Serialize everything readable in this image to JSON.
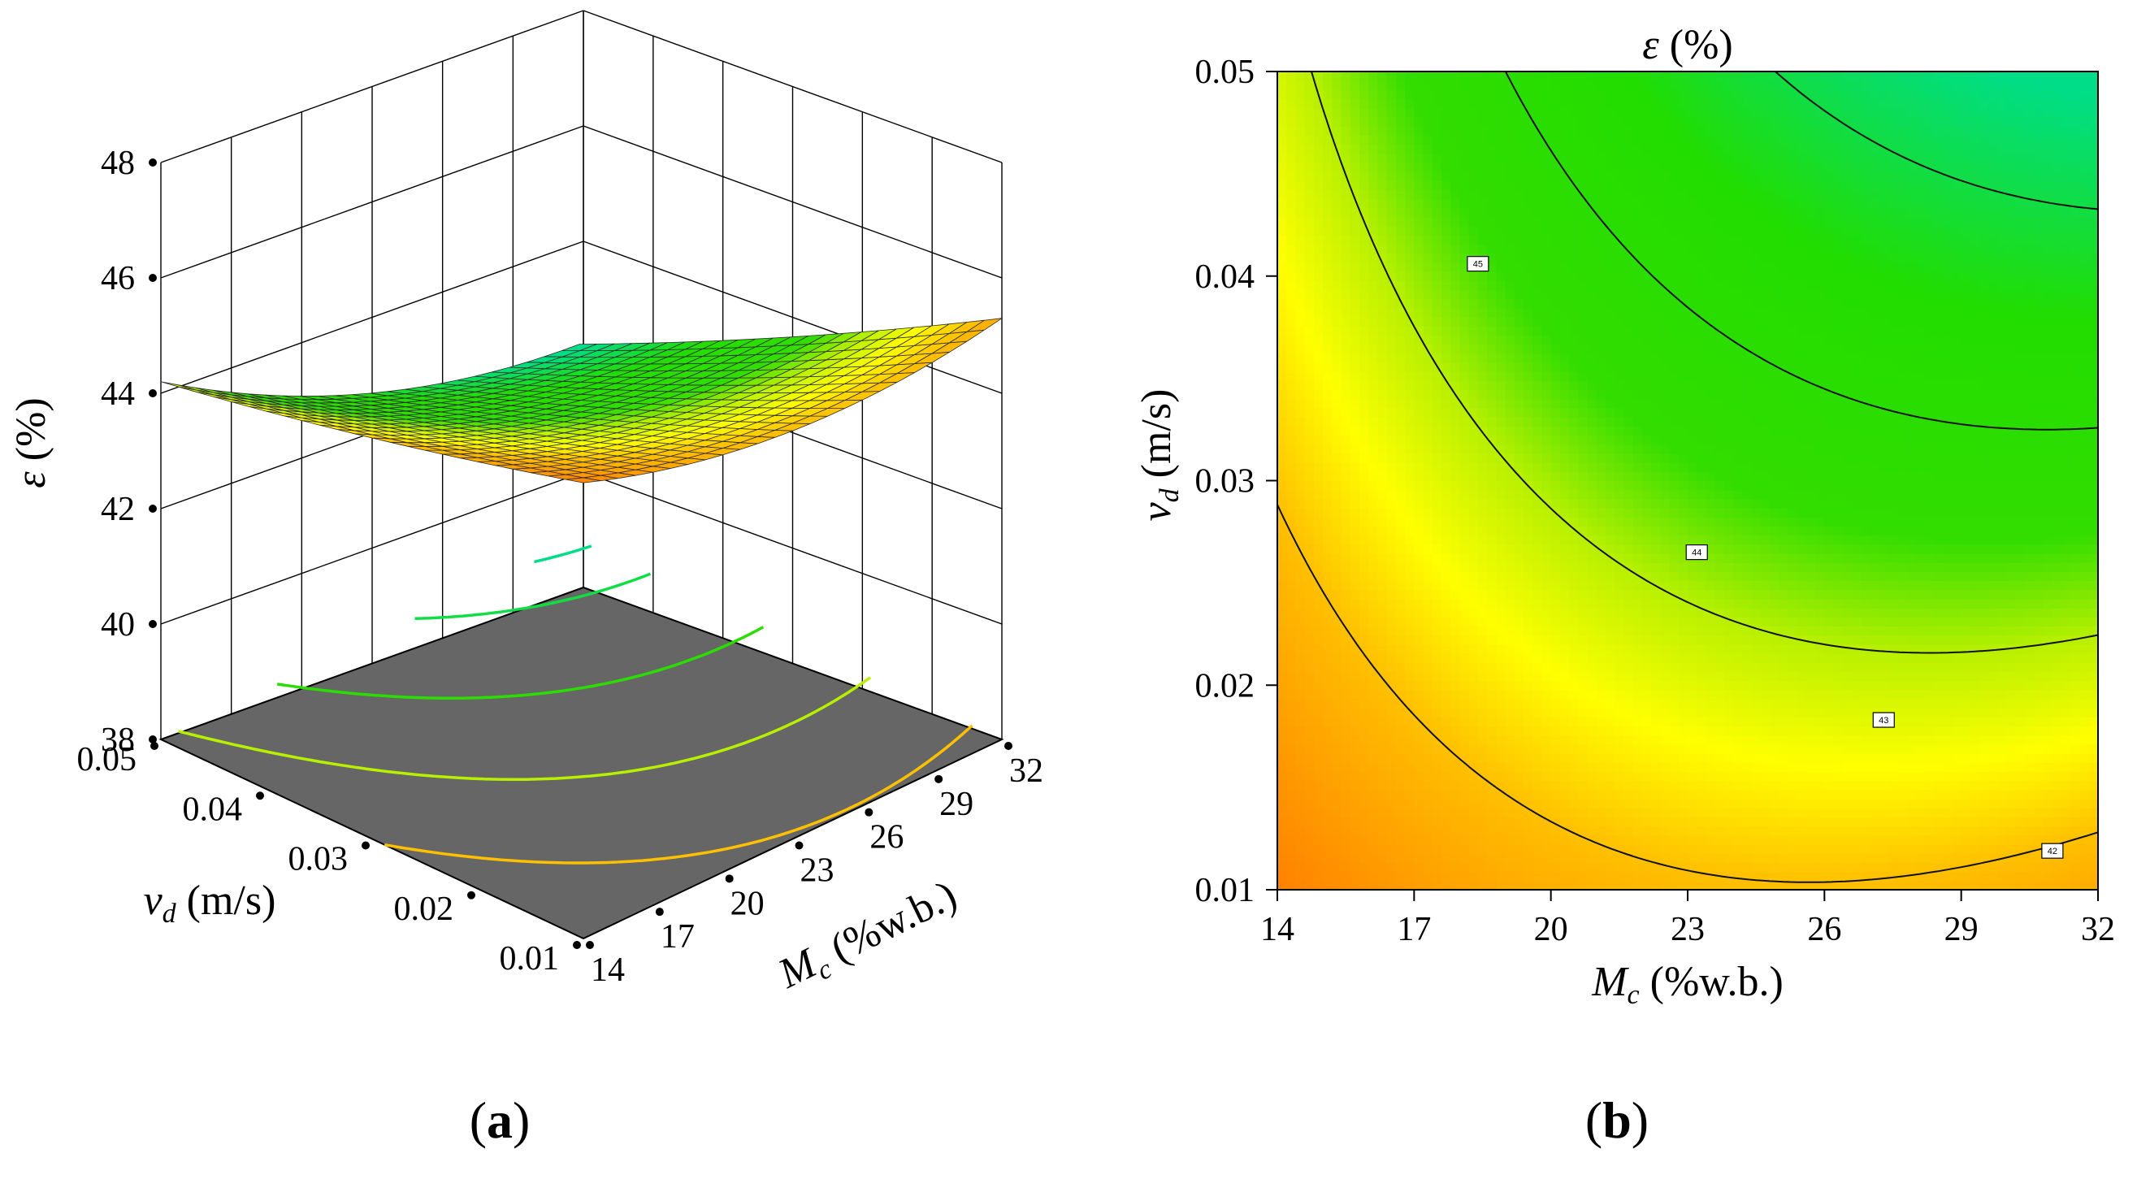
{
  "chart_data": [
    {
      "panel": "a",
      "type": "surface3d",
      "zlabel_symbol": "ε",
      "zlabel_unit": " (%)",
      "xlabel_main": "M",
      "xlabel_sub": "c",
      "xlabel_unit": " (%w.b.)",
      "ylabel_main": "v",
      "ylabel_sub": "d",
      "ylabel_unit": " (m/s)",
      "x_ticks": [
        "14",
        "17",
        "20",
        "23",
        "26",
        "29",
        "32"
      ],
      "y_ticks": [
        "0.01",
        "0.02",
        "0.03",
        "0.04",
        "0.05"
      ],
      "z_ticks": [
        "38",
        "40",
        "42",
        "44",
        "46",
        "48"
      ],
      "xlim": [
        14,
        32
      ],
      "ylim": [
        0.01,
        0.05
      ],
      "zlim": [
        38,
        48
      ],
      "corner_values": [
        {
          "x": 14,
          "y": 0.05,
          "z": 45.0
        },
        {
          "x": 14,
          "y": 0.01,
          "z": 47.5
        },
        {
          "x": 32,
          "y": 0.05,
          "z": 41.4
        },
        {
          "x": 32,
          "y": 0.01,
          "z": 43.7
        }
      ],
      "floor_contours": [
        45,
        44,
        43,
        42,
        41.5,
        41
      ],
      "panel_label": "a"
    },
    {
      "panel": "b",
      "type": "contour",
      "title_symbol": "ε",
      "title_unit": " (%)",
      "xlabel_main": "M",
      "xlabel_sub": "c",
      "xlabel_unit": " (%w.b.)",
      "ylabel_main": "v",
      "ylabel_sub": "d",
      "ylabel_unit": " (m/s)",
      "x_ticks": [
        "14",
        "17",
        "20",
        "23",
        "26",
        "29",
        "32"
      ],
      "y_ticks": [
        "0.01",
        "0.02",
        "0.03",
        "0.04",
        "0.05"
      ],
      "xlim": [
        14,
        32
      ],
      "ylim": [
        0.01,
        0.05
      ],
      "contour_levels": [
        {
          "level": 45,
          "label": "45",
          "label_at": [
            18.4,
            0.0406
          ]
        },
        {
          "level": 44,
          "label": "44",
          "label_at": [
            23.2,
            0.0265
          ]
        },
        {
          "level": 43,
          "label": "43",
          "label_at": [
            27.3,
            0.0183
          ]
        },
        {
          "level": 42,
          "label": "42",
          "label_at": [
            31.0,
            0.0119
          ]
        }
      ],
      "color_scale": [
        {
          "value": 41.5,
          "color": "#00dd88"
        },
        {
          "value": 42.5,
          "color": "#22dd00"
        },
        {
          "value": 43.5,
          "color": "#33dd00"
        },
        {
          "value": 44.0,
          "color": "#b8f000"
        },
        {
          "value": 44.5,
          "color": "#ffff00"
        },
        {
          "value": 45.0,
          "color": "#ffc000"
        },
        {
          "value": 46.0,
          "color": "#ff7a00"
        },
        {
          "value": 47.0,
          "color": "#ff3a00"
        }
      ],
      "panel_label": "b"
    }
  ]
}
